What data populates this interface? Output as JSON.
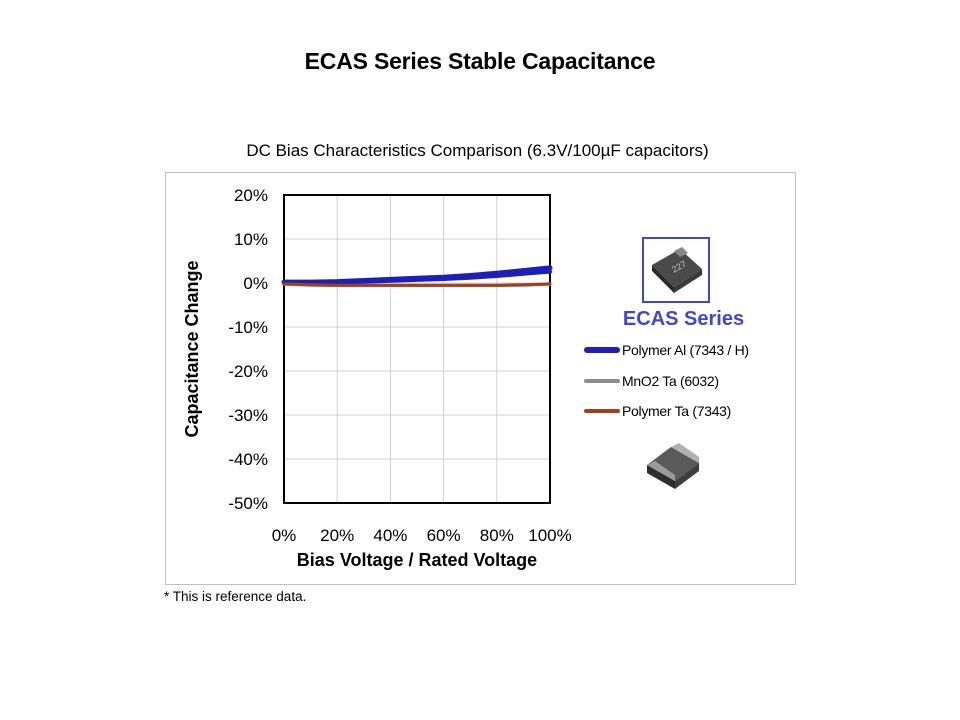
{
  "slide": {
    "title": "ECAS Series Stable Capacitance",
    "footnote": "* This  is reference  data."
  },
  "chart_data": {
    "type": "line",
    "title": "DC Bias Characteristics Comparison  (6.3V/100µF  capacitors)",
    "xlabel": "Bias Voltage / Rated Voltage",
    "ylabel": "Capacitance Change",
    "xlim": [
      0,
      100
    ],
    "ylim": [
      -50,
      20
    ],
    "x_ticks": [
      "0%",
      "20%",
      "40%",
      "60%",
      "80%",
      "100%"
    ],
    "y_ticks": [
      "20%",
      "10%",
      "0%",
      "-10%",
      "-20%",
      "-30%",
      "-40%",
      "-50%"
    ],
    "grid": true,
    "legend_position": "right",
    "x": [
      0,
      10,
      20,
      30,
      40,
      50,
      60,
      70,
      80,
      90,
      100
    ],
    "series": [
      {
        "name": "Polymer Al (7343  / H)",
        "color": "#1f1fb8",
        "values": [
          0,
          0,
          0.1,
          0.3,
          0.5,
          0.7,
          0.9,
          1.2,
          1.6,
          2.1,
          2.6
        ]
      },
      {
        "name": "MnO2 Ta (6032)",
        "color": "#8c8c8c",
        "values": [
          -0.3,
          -0.5,
          -0.6,
          -0.6,
          -0.6,
          -0.6,
          -0.6,
          -0.6,
          -0.6,
          -0.5,
          -0.3
        ]
      },
      {
        "name": "Polymer Ta (7343)",
        "color": "#a0401c",
        "values": [
          -0.2,
          -0.4,
          -0.5,
          -0.5,
          -0.5,
          -0.5,
          -0.5,
          -0.5,
          -0.5,
          -0.4,
          -0.2
        ]
      }
    ],
    "annotation": "ECAS Series"
  },
  "icons": {
    "product_top": "capacitor-ecas-chip-icon",
    "product_bottom": "capacitor-ta-chip-icon"
  },
  "colors": {
    "accent": "#3f48cc"
  }
}
